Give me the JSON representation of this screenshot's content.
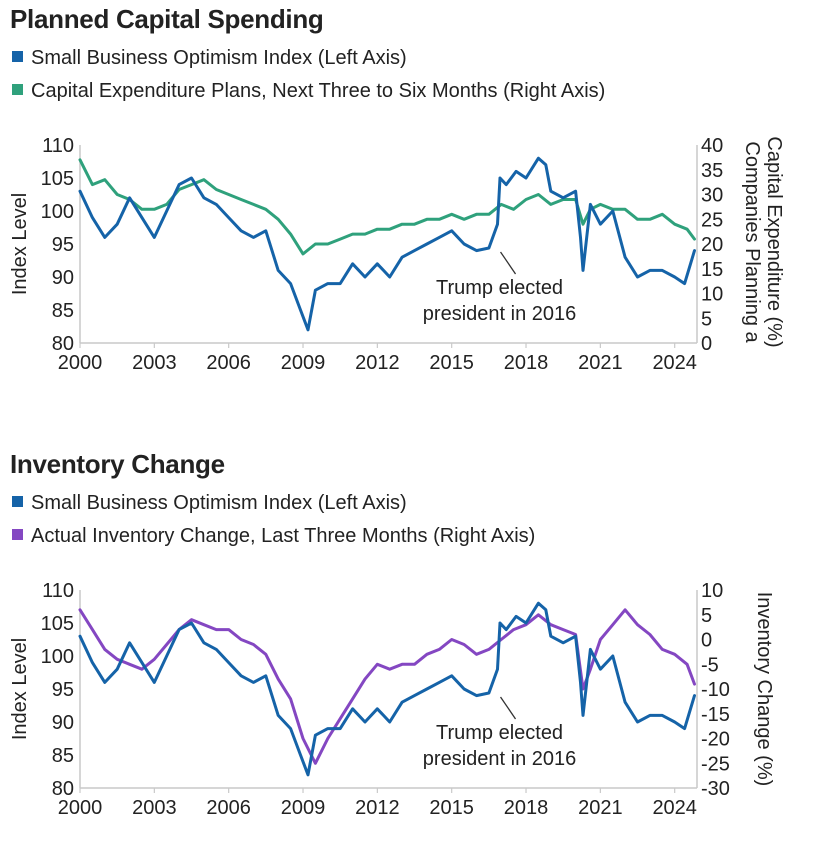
{
  "colors": {
    "blue": "#1563a8",
    "green": "#2fa17c",
    "purple": "#8447c2",
    "axis": "#c9c9c9",
    "text": "#222222"
  },
  "chart_data": [
    {
      "type": "line",
      "title": "Planned Capital Spending",
      "legend": [
        "Small Business Optimism Index (Left Axis)",
        "Capital Expenditure Plans, Next Three to Six Months (Right Axis)"
      ],
      "ylabel": "Index Level",
      "y2label": "Companies Planning a Capital Expenditure (%)",
      "xlim": [
        2000,
        2024.9
      ],
      "ylim": [
        80,
        110
      ],
      "y2lim": [
        0,
        40
      ],
      "x_ticks": [
        "2000",
        "2003",
        "2006",
        "2009",
        "2012",
        "2015",
        "2018",
        "2021",
        "2024"
      ],
      "y_ticks": [
        "80",
        "85",
        "90",
        "95",
        "100",
        "105",
        "110"
      ],
      "y2_ticks": [
        "0",
        "5",
        "10",
        "15",
        "20",
        "25",
        "30",
        "35",
        "40"
      ],
      "annotation": {
        "line1": "Trump elected",
        "line2": "president in 2016",
        "x": 2016.85,
        "y": 94.4
      },
      "series": [
        {
          "name": "Small Business Optimism Index",
          "axis": "left",
          "color": "#1563a8",
          "x": [
            2000,
            2000.5,
            2001,
            2001.5,
            2002,
            2002.5,
            2003,
            2003.5,
            2004,
            2004.5,
            2005,
            2005.5,
            2006,
            2006.5,
            2007,
            2007.5,
            2008,
            2008.5,
            2008.9,
            2009.2,
            2009.5,
            2010,
            2010.5,
            2011,
            2011.5,
            2012,
            2012.5,
            2013,
            2013.5,
            2014,
            2014.5,
            2015,
            2015.5,
            2016,
            2016.5,
            2016.85,
            2016.95,
            2017.2,
            2017.6,
            2018,
            2018.5,
            2018.8,
            2019,
            2019.5,
            2020,
            2020.2,
            2020.3,
            2020.6,
            2021,
            2021.5,
            2022,
            2022.5,
            2023,
            2023.5,
            2024,
            2024.4,
            2024.8
          ],
          "values": [
            103,
            99,
            96,
            98,
            102,
            99,
            96,
            100,
            104,
            105,
            102,
            101,
            99,
            97,
            96,
            97,
            91,
            89,
            85,
            82,
            88,
            89,
            89,
            92,
            90,
            92,
            90,
            93,
            94,
            95,
            96,
            97,
            95,
            94,
            94.4,
            98,
            105,
            104,
            106,
            105,
            108,
            107,
            103,
            102,
            103,
            96,
            91,
            101,
            98,
            100,
            93,
            90,
            91,
            91,
            90,
            89,
            94
          ]
        },
        {
          "name": "Capital Expenditure Plans",
          "axis": "right",
          "color": "#2fa17c",
          "x": [
            2000,
            2000.5,
            2001,
            2001.5,
            2002,
            2002.5,
            2003,
            2003.5,
            2004,
            2004.5,
            2005,
            2005.5,
            2006,
            2006.5,
            2007,
            2007.5,
            2008,
            2008.5,
            2009,
            2009.5,
            2010,
            2010.5,
            2011,
            2011.5,
            2012,
            2012.5,
            2013,
            2013.5,
            2014,
            2014.5,
            2015,
            2015.5,
            2016,
            2016.5,
            2017,
            2017.5,
            2018,
            2018.5,
            2019,
            2019.5,
            2020,
            2020.3,
            2020.6,
            2021,
            2021.5,
            2022,
            2022.5,
            2023,
            2023.5,
            2024,
            2024.5,
            2024.8
          ],
          "values": [
            37,
            32,
            33,
            30,
            29,
            27,
            27,
            28,
            31,
            32,
            33,
            31,
            30,
            29,
            28,
            27,
            25,
            22,
            18,
            20,
            20,
            21,
            22,
            22,
            23,
            23,
            24,
            24,
            25,
            25,
            26,
            25,
            26,
            26,
            28,
            27,
            29,
            30,
            28,
            29,
            29,
            24,
            27,
            28,
            27,
            27,
            25,
            25,
            26,
            24,
            23,
            21
          ]
        }
      ]
    },
    {
      "type": "line",
      "title": "Inventory Change",
      "legend": [
        "Small Business Optimism Index (Left Axis)",
        "Actual Inventory Change, Last Three Months (Right Axis)"
      ],
      "ylabel": "Index Level",
      "y2label": "Inventory Change (%)",
      "xlim": [
        2000,
        2024.9
      ],
      "ylim": [
        80,
        110
      ],
      "y2lim": [
        -30,
        10
      ],
      "x_ticks": [
        "2000",
        "2003",
        "2006",
        "2009",
        "2012",
        "2015",
        "2018",
        "2021",
        "2024"
      ],
      "y_ticks": [
        "80",
        "85",
        "90",
        "95",
        "100",
        "105",
        "110"
      ],
      "y2_ticks": [
        "-30",
        "-25",
        "-20",
        "-15",
        "-10",
        "-5",
        "0",
        "5",
        "10"
      ],
      "annotation": {
        "line1": "Trump elected",
        "line2": "president in 2016",
        "x": 2016.85,
        "y": 94.4
      },
      "series": [
        {
          "name": "Small Business Optimism Index",
          "axis": "left",
          "color": "#1563a8",
          "x": [
            2000,
            2000.5,
            2001,
            2001.5,
            2002,
            2002.5,
            2003,
            2003.5,
            2004,
            2004.5,
            2005,
            2005.5,
            2006,
            2006.5,
            2007,
            2007.5,
            2008,
            2008.5,
            2008.9,
            2009.2,
            2009.5,
            2010,
            2010.5,
            2011,
            2011.5,
            2012,
            2012.5,
            2013,
            2013.5,
            2014,
            2014.5,
            2015,
            2015.5,
            2016,
            2016.5,
            2016.85,
            2016.95,
            2017.2,
            2017.6,
            2018,
            2018.5,
            2018.8,
            2019,
            2019.5,
            2020,
            2020.2,
            2020.3,
            2020.6,
            2021,
            2021.5,
            2022,
            2022.5,
            2023,
            2023.5,
            2024,
            2024.4,
            2024.8
          ],
          "values": [
            103,
            99,
            96,
            98,
            102,
            99,
            96,
            100,
            104,
            105,
            102,
            101,
            99,
            97,
            96,
            97,
            91,
            89,
            85,
            82,
            88,
            89,
            89,
            92,
            90,
            92,
            90,
            93,
            94,
            95,
            96,
            97,
            95,
            94,
            94.4,
            98,
            105,
            104,
            106,
            105,
            108,
            107,
            103,
            102,
            103,
            96,
            91,
            101,
            98,
            100,
            93,
            90,
            91,
            91,
            90,
            89,
            94
          ]
        },
        {
          "name": "Actual Inventory Change",
          "axis": "right",
          "color": "#8447c2",
          "x": [
            2000,
            2000.5,
            2001,
            2001.5,
            2002,
            2002.5,
            2003,
            2003.5,
            2004,
            2004.5,
            2005,
            2005.5,
            2006,
            2006.5,
            2007,
            2007.5,
            2008,
            2008.5,
            2009,
            2009.5,
            2010,
            2010.5,
            2011,
            2011.5,
            2012,
            2012.5,
            2013,
            2013.5,
            2014,
            2014.5,
            2015,
            2015.5,
            2016,
            2016.5,
            2017,
            2017.5,
            2018,
            2018.5,
            2019,
            2019.5,
            2020,
            2020.3,
            2020.6,
            2021,
            2021.5,
            2022,
            2022.5,
            2023,
            2023.5,
            2024,
            2024.5,
            2024.8
          ],
          "values": [
            6,
            2,
            -2,
            -4,
            -5,
            -6,
            -4,
            -1,
            2,
            4,
            3,
            2,
            2,
            0,
            -1,
            -3,
            -8,
            -12,
            -20,
            -25,
            -20,
            -16,
            -12,
            -8,
            -5,
            -6,
            -5,
            -5,
            -3,
            -2,
            0,
            -1,
            -3,
            -2,
            0,
            2,
            3,
            5,
            3,
            2,
            1,
            -10,
            -6,
            0,
            3,
            6,
            3,
            1,
            -2,
            -3,
            -5,
            -9
          ]
        }
      ]
    }
  ]
}
